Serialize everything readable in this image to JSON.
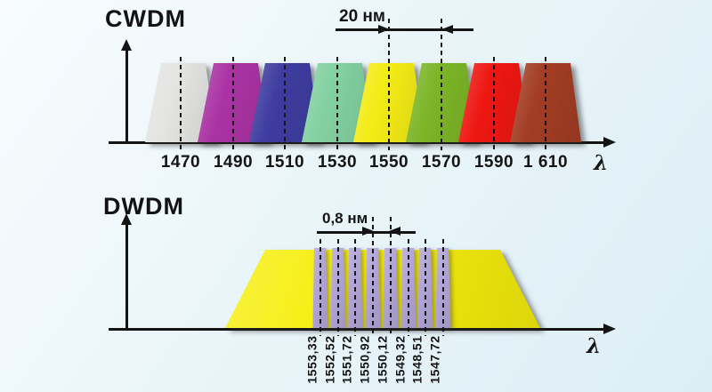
{
  "colors": {
    "axis": "#141414",
    "background_top": "#f8fcfe",
    "background_bottom": "#dceef5"
  },
  "cwdm": {
    "title": "CWDM",
    "spacing_label": "20 нм",
    "axis_label": "λ",
    "channels": [
      {
        "wavelength": "1470",
        "color": "#e4e4e2"
      },
      {
        "wavelength": "1490",
        "color": "#aa33a4"
      },
      {
        "wavelength": "1510",
        "color": "#3e3da0"
      },
      {
        "wavelength": "1530",
        "color": "#83d1a1"
      },
      {
        "wavelength": "1550",
        "color": "#f4ec16",
        "marked": true
      },
      {
        "wavelength": "1570",
        "color": "#7cb527",
        "marked": true
      },
      {
        "wavelength": "1590",
        "color": "#ee1712"
      },
      {
        "wavelength": "1 610",
        "color": "#a33d24"
      }
    ]
  },
  "dwdm": {
    "title": "DWDM",
    "spacing_label": "0,8 нм",
    "axis_label": "λ",
    "band_color": "#f6ee0c",
    "channel_color": "#b2a5d8",
    "channels": [
      {
        "wavelength": "1553,33"
      },
      {
        "wavelength": "1552,52"
      },
      {
        "wavelength": "1551,72"
      },
      {
        "wavelength": "1550,92",
        "marked": true
      },
      {
        "wavelength": "1550,12",
        "marked": true
      },
      {
        "wavelength": "1549,32"
      },
      {
        "wavelength": "1548,51"
      },
      {
        "wavelength": "1547,72"
      }
    ]
  },
  "chart_data": [
    {
      "type": "area",
      "title": "CWDM",
      "xlabel": "λ",
      "channel_spacing_nm": 20,
      "channels_nm": [
        1470,
        1490,
        1510,
        1530,
        1550,
        1570,
        1590,
        1610
      ]
    },
    {
      "type": "area",
      "title": "DWDM",
      "xlabel": "λ",
      "channel_spacing_nm": 0.8,
      "channels_nm": [
        1553.33,
        1552.52,
        1551.72,
        1550.92,
        1550.12,
        1549.32,
        1548.51,
        1547.72
      ]
    }
  ]
}
